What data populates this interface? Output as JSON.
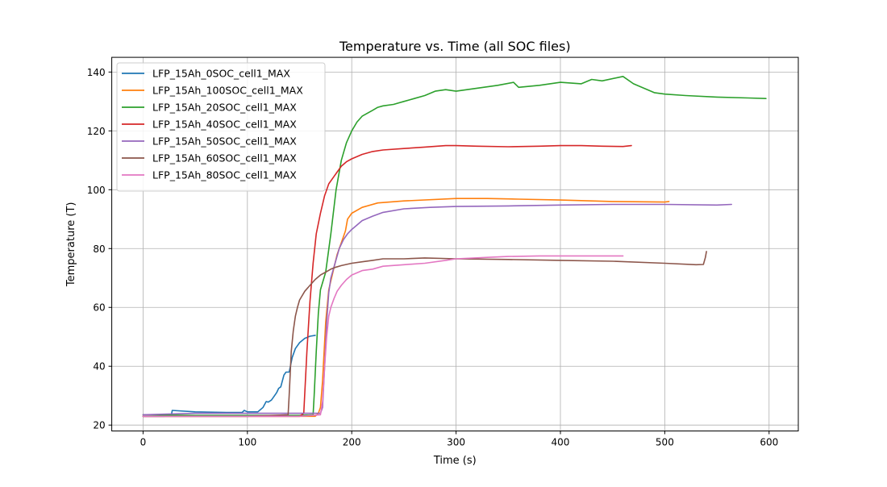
{
  "chart_data": {
    "type": "line",
    "title": "Temperature vs. Time (all SOC files)",
    "xlabel": "Time (s)",
    "ylabel": "Temperature (T)",
    "xlim": [
      -30,
      628
    ],
    "ylim": [
      18,
      145
    ],
    "xticks": [
      0,
      100,
      200,
      300,
      400,
      500,
      600
    ],
    "yticks": [
      20,
      40,
      60,
      80,
      100,
      120,
      140
    ],
    "grid": true,
    "legend_position": "top-left",
    "series": [
      {
        "name": "LFP_15Ah_0SOC_cell1_MAX",
        "color": "#1f77b4",
        "x": [
          0,
          20,
          27,
          28,
          50,
          80,
          95,
          97,
          100,
          110,
          115,
          118,
          120,
          123,
          126,
          128,
          130,
          132,
          135,
          137,
          140,
          143,
          146,
          150,
          155,
          160,
          165
        ],
        "y": [
          23,
          23,
          23.2,
          25,
          24.5,
          24.3,
          24.3,
          25,
          24.5,
          24.5,
          26,
          28,
          27.8,
          28.5,
          30,
          31,
          32.5,
          33,
          37,
          38,
          38,
          43,
          46,
          48,
          49.5,
          50.2,
          50.5
        ]
      },
      {
        "name": "LFP_15Ah_100SOC_cell1_MAX",
        "color": "#ff7f0e",
        "x": [
          0,
          50,
          100,
          150,
          165,
          168,
          170,
          172,
          175,
          178,
          182,
          186,
          190,
          194,
          196,
          200,
          210,
          225,
          250,
          300,
          330,
          360,
          400,
          450,
          500,
          504
        ],
        "y": [
          23,
          23,
          23,
          23,
          23,
          24,
          26,
          35,
          55,
          66,
          72,
          78,
          82,
          86,
          90,
          92,
          94,
          95.5,
          96.2,
          97,
          97,
          96.8,
          96.5,
          96,
          95.8,
          96
        ]
      },
      {
        "name": "LFP_15Ah_20SOC_cell1_MAX",
        "color": "#2ca02c",
        "x": [
          0,
          50,
          100,
          150,
          163,
          164,
          166,
          168,
          170,
          175,
          180,
          185,
          190,
          195,
          200,
          205,
          210,
          215,
          220,
          225,
          230,
          240,
          250,
          260,
          270,
          280,
          290,
          300,
          320,
          340,
          355,
          360,
          380,
          400,
          420,
          430,
          440,
          460,
          470,
          480,
          490,
          500,
          520,
          550,
          580,
          597
        ],
        "y": [
          23.5,
          23.3,
          23.3,
          23.3,
          23.5,
          30,
          45,
          58,
          66,
          72,
          85,
          100,
          110,
          116,
          120,
          123,
          125,
          126,
          127,
          128,
          128.5,
          129,
          130,
          131,
          132,
          133.5,
          134,
          133.5,
          134.5,
          135.5,
          136.5,
          134.8,
          135.5,
          136.5,
          136,
          137.5,
          137,
          138.5,
          136,
          134.5,
          133,
          132.5,
          132,
          131.5,
          131.2,
          131
        ]
      },
      {
        "name": "LFP_15Ah_40SOC_cell1_MAX",
        "color": "#d62728",
        "x": [
          0,
          50,
          100,
          150,
          154,
          157,
          160,
          163,
          166,
          170,
          174,
          178,
          182,
          186,
          190,
          195,
          200,
          210,
          220,
          230,
          250,
          270,
          290,
          300,
          320,
          350,
          380,
          400,
          420,
          440,
          460,
          468
        ],
        "y": [
          23,
          23,
          23,
          23,
          24,
          45,
          62,
          75,
          85,
          92,
          98,
          102,
          104,
          106,
          108,
          109.5,
          110.5,
          112,
          113,
          113.5,
          114,
          114.5,
          115,
          115,
          114.8,
          114.6,
          114.8,
          115,
          115,
          114.8,
          114.7,
          115
        ]
      },
      {
        "name": "LFP_15Ah_50SOC_cell1_MAX",
        "color": "#9467bd",
        "x": [
          0,
          50,
          100,
          150,
          170,
          172,
          174,
          176,
          178,
          180,
          184,
          188,
          192,
          196,
          200,
          205,
          210,
          220,
          230,
          250,
          275,
          300,
          350,
          400,
          450,
          500,
          550,
          564
        ],
        "y": [
          23.5,
          24,
          24,
          24,
          24,
          26,
          40,
          55,
          65,
          70,
          75,
          80,
          83,
          85,
          86.5,
          88,
          89.5,
          91,
          92.3,
          93.5,
          94,
          94.3,
          94.5,
          94.8,
          95,
          95,
          94.8,
          95
        ]
      },
      {
        "name": "LFP_15Ah_60SOC_cell1_MAX",
        "color": "#8c564b",
        "x": [
          0,
          50,
          100,
          139,
          140,
          142,
          144,
          146,
          148,
          150,
          155,
          160,
          165,
          170,
          175,
          180,
          185,
          190,
          200,
          210,
          220,
          230,
          250,
          270,
          300,
          350,
          400,
          450,
          500,
          530,
          537,
          539,
          540
        ],
        "y": [
          23,
          23,
          23,
          23.5,
          30,
          45,
          52,
          57,
          60,
          62.5,
          65.5,
          67.5,
          69.5,
          71,
          72,
          73,
          73.7,
          74.2,
          75,
          75.5,
          76,
          76.5,
          76.5,
          76.8,
          76.5,
          76.3,
          76,
          75.7,
          75,
          74.5,
          74.6,
          77,
          79
        ]
      },
      {
        "name": "LFP_15Ah_80SOC_cell1_MAX",
        "color": "#e377c2",
        "x": [
          0,
          50,
          100,
          150,
          170,
          172,
          174,
          176,
          178,
          180,
          183,
          186,
          190,
          195,
          200,
          210,
          220,
          230,
          250,
          270,
          290,
          300,
          330,
          350,
          380,
          400,
          430,
          460
        ],
        "y": [
          23,
          23,
          23,
          23,
          23.5,
          28,
          40,
          50,
          57,
          60,
          63,
          65.5,
          67.5,
          69.5,
          71,
          72.5,
          73,
          74,
          74.5,
          75,
          76,
          76.5,
          77,
          77.3,
          77.5,
          77.5,
          77.5,
          77.5
        ]
      }
    ]
  }
}
